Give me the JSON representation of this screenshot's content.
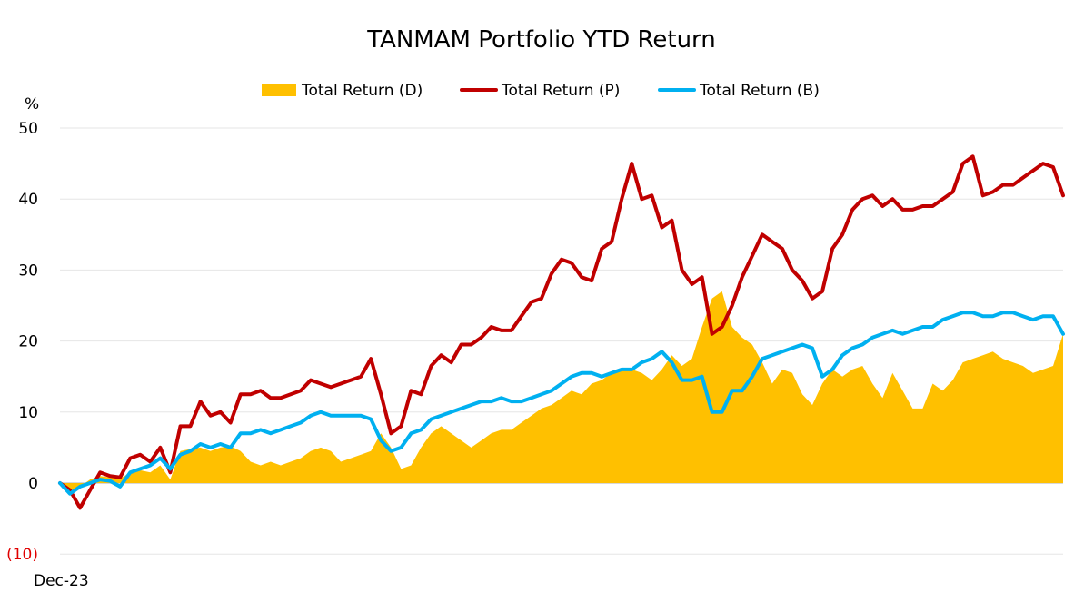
{
  "chart_data": {
    "type": "area+line",
    "title": "TANMAM Portfolio YTD Return",
    "ylabel": "%",
    "ylim": [
      -10,
      50
    ],
    "yticks": [
      {
        "value": 50,
        "label": "50"
      },
      {
        "value": 40,
        "label": "40"
      },
      {
        "value": 30,
        "label": "30"
      },
      {
        "value": 20,
        "label": "20"
      },
      {
        "value": 10,
        "label": "10"
      },
      {
        "value": 0,
        "label": "0"
      },
      {
        "value": -10,
        "label": "(10)"
      }
    ],
    "x_start_label": "Dec-23",
    "x_range": [
      0,
      100
    ],
    "legend_position": "top-center",
    "grid": true,
    "series": [
      {
        "name": "Total Return (D)",
        "style": "area",
        "color": "#FFC000",
        "x": [
          0,
          1,
          2,
          3,
          4,
          5,
          6,
          7,
          8,
          9,
          10,
          11,
          12,
          13,
          14,
          15,
          16,
          17,
          18,
          19,
          20,
          21,
          22,
          23,
          24,
          25,
          26,
          27,
          28,
          29,
          30,
          31,
          32,
          33,
          34,
          35,
          36,
          37,
          38,
          39,
          40,
          41,
          42,
          43,
          44,
          45,
          46,
          47,
          48,
          49,
          50,
          51,
          52,
          53,
          54,
          55,
          56,
          57,
          58,
          59,
          60,
          61,
          62,
          63,
          64,
          65,
          66,
          67,
          68,
          69,
          70,
          71,
          72,
          73,
          74,
          75,
          76,
          77,
          78,
          79,
          80,
          81,
          82,
          83,
          84,
          85,
          86,
          87,
          88,
          89,
          90,
          91,
          92,
          93,
          94,
          95,
          96,
          97,
          98,
          99,
          100
        ],
        "values": [
          0,
          -1.5,
          -0.5,
          0.5,
          1,
          0.8,
          0.6,
          1.5,
          1.8,
          1.5,
          2.5,
          0.5,
          4.5,
          4.8,
          5,
          4.5,
          5,
          5.2,
          4.5,
          3,
          2.5,
          3,
          2.5,
          3,
          3.5,
          4.5,
          5,
          4.5,
          3,
          3.5,
          4,
          4.5,
          7,
          5,
          2,
          2.5,
          5,
          7,
          8,
          7,
          6,
          5,
          6,
          7,
          7.5,
          7.5,
          8.5,
          9.5,
          10.5,
          11,
          12,
          13,
          12.5,
          14,
          14.5,
          15.5,
          16,
          16,
          15.5,
          14.5,
          16,
          18,
          16.5,
          17.5,
          22,
          26,
          27,
          22,
          20.5,
          19.5,
          17,
          14,
          16,
          15.5,
          12.5,
          11,
          14,
          16,
          15,
          16,
          16.5,
          14,
          12,
          15.5,
          13,
          10.5,
          10.5,
          14,
          13,
          14.5,
          17,
          17.5,
          18,
          18.5,
          17.5,
          17,
          16.5,
          15.5,
          16,
          16.5,
          21
        ]
      },
      {
        "name": "Total Return (P)",
        "style": "line",
        "color": "#C00000",
        "x": [
          0,
          1,
          2,
          3,
          4,
          5,
          6,
          7,
          8,
          9,
          10,
          11,
          12,
          13,
          14,
          15,
          16,
          17,
          18,
          19,
          20,
          21,
          22,
          23,
          24,
          25,
          26,
          27,
          28,
          29,
          30,
          31,
          32,
          33,
          34,
          35,
          36,
          37,
          38,
          39,
          40,
          41,
          42,
          43,
          44,
          45,
          46,
          47,
          48,
          49,
          50,
          51,
          52,
          53,
          54,
          55,
          56,
          57,
          58,
          59,
          60,
          61,
          62,
          63,
          64,
          65,
          66,
          67,
          68,
          69,
          70,
          71,
          72,
          73,
          74,
          75,
          76,
          77,
          78,
          79,
          80,
          81,
          82,
          83,
          84,
          85,
          86,
          87,
          88,
          89,
          90,
          91,
          92,
          93,
          94,
          95,
          96,
          97,
          98,
          99,
          100
        ],
        "values": [
          0,
          -1,
          -3.5,
          -1,
          1.5,
          1,
          0.8,
          3.5,
          4,
          3,
          5,
          1.5,
          8,
          8,
          11.5,
          9.5,
          10,
          8.5,
          12.5,
          12.5,
          13,
          12,
          12,
          12.5,
          13,
          14.5,
          14,
          13.5,
          14,
          14.5,
          15,
          17.5,
          12.5,
          7,
          8,
          13,
          12.5,
          16.5,
          18,
          17,
          19.5,
          19.5,
          20.5,
          22,
          21.5,
          21.5,
          23.5,
          25.5,
          26,
          29.5,
          31.5,
          31,
          29,
          28.5,
          33,
          34,
          40,
          45,
          40,
          40.5,
          36,
          37,
          30,
          28,
          29,
          21,
          22,
          25,
          29,
          32,
          35,
          34,
          33,
          30,
          28.5,
          26,
          27,
          33,
          35,
          38.5,
          40,
          40.5,
          39,
          40,
          38.5,
          38.5,
          39,
          39,
          40,
          41,
          45,
          46,
          40.5,
          41,
          42,
          42,
          43,
          44,
          45,
          44.5,
          40.5
        ]
      },
      {
        "name": "Total Return (B)",
        "style": "line",
        "color": "#00B0F0",
        "x": [
          0,
          1,
          2,
          3,
          4,
          5,
          6,
          7,
          8,
          9,
          10,
          11,
          12,
          13,
          14,
          15,
          16,
          17,
          18,
          19,
          20,
          21,
          22,
          23,
          24,
          25,
          26,
          27,
          28,
          29,
          30,
          31,
          32,
          33,
          34,
          35,
          36,
          37,
          38,
          39,
          40,
          41,
          42,
          43,
          44,
          45,
          46,
          47,
          48,
          49,
          50,
          51,
          52,
          53,
          54,
          55,
          56,
          57,
          58,
          59,
          60,
          61,
          62,
          63,
          64,
          65,
          66,
          67,
          68,
          69,
          70,
          71,
          72,
          73,
          74,
          75,
          76,
          77,
          78,
          79,
          80,
          81,
          82,
          83,
          84,
          85,
          86,
          87,
          88,
          89,
          90,
          91,
          92,
          93,
          94,
          95,
          96,
          97,
          98,
          99,
          100
        ],
        "values": [
          0,
          -1.5,
          -0.5,
          0,
          0.5,
          0.3,
          -0.5,
          1.5,
          2,
          2.5,
          3.5,
          2,
          4,
          4.5,
          5.5,
          5,
          5.5,
          5,
          7,
          7,
          7.5,
          7,
          7.5,
          8,
          8.5,
          9.5,
          10,
          9.5,
          9.5,
          9.5,
          9.5,
          9,
          6,
          4.5,
          5,
          7,
          7.5,
          9,
          9.5,
          10,
          10.5,
          11,
          11.5,
          11.5,
          12,
          11.5,
          11.5,
          12,
          12.5,
          13,
          14,
          15,
          15.5,
          15.5,
          15,
          15.5,
          16,
          16,
          17,
          17.5,
          18.5,
          17,
          14.5,
          14.5,
          15,
          10,
          10,
          13,
          13,
          15,
          17.5,
          18,
          18.5,
          19,
          19.5,
          19,
          15,
          16,
          18,
          19,
          19.5,
          20.5,
          21,
          21.5,
          21,
          21.5,
          22,
          22,
          23,
          23.5,
          24,
          24,
          23.5,
          23.5,
          24,
          24,
          23.5,
          23,
          23.5,
          23.5,
          21
        ]
      }
    ]
  }
}
